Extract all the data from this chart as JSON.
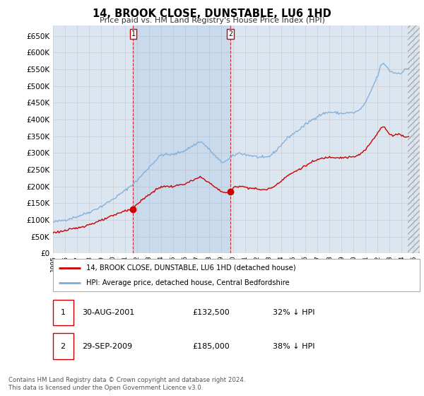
{
  "title": "14, BROOK CLOSE, DUNSTABLE, LU6 1HD",
  "subtitle": "Price paid vs. HM Land Registry's House Price Index (HPI)",
  "ylim": [
    0,
    680000
  ],
  "ytick_vals": [
    0,
    50000,
    100000,
    150000,
    200000,
    250000,
    300000,
    350000,
    400000,
    450000,
    500000,
    550000,
    600000,
    650000
  ],
  "xlim_start": 1995.0,
  "xlim_end": 2025.5,
  "grid_color": "#cccccc",
  "plot_bg": "#dce6f1",
  "hpi_color": "#7aaddb",
  "price_color": "#cc0000",
  "sale1_x": 2001.67,
  "sale1_y": 132500,
  "sale2_x": 2009.75,
  "sale2_y": 185000,
  "hatch_start": 2024.5,
  "footer_line1": "Contains HM Land Registry data © Crown copyright and database right 2024.",
  "footer_line2": "This data is licensed under the Open Government Licence v3.0.",
  "legend_entry1": "14, BROOK CLOSE, DUNSTABLE, LU6 1HD (detached house)",
  "legend_entry2": "HPI: Average price, detached house, Central Bedfordshire"
}
